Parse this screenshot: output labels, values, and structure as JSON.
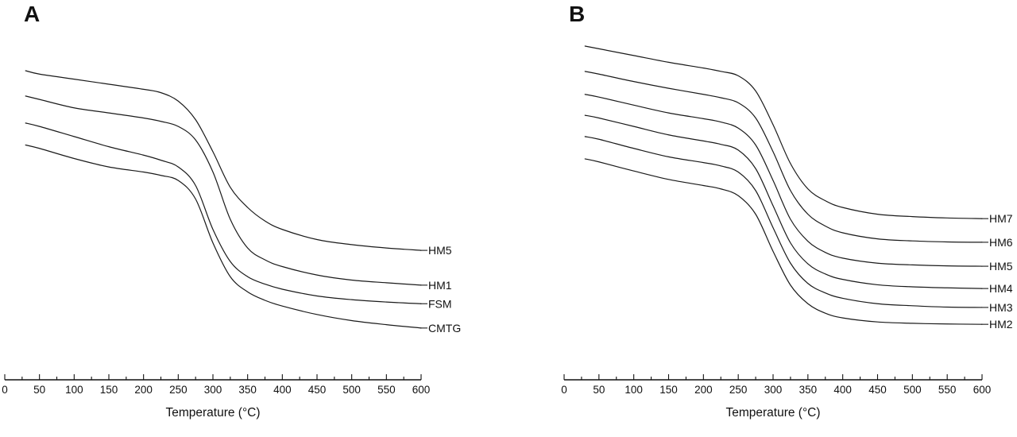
{
  "figure": {
    "panel_a_letter": "A",
    "panel_b_letter": "B"
  },
  "chart_data": [
    {
      "type": "line",
      "panel": "A",
      "title": "",
      "xlabel": "Temperature (°C)",
      "ylabel": "",
      "xlim": [
        0,
        600
      ],
      "ylim": [
        0,
        100
      ],
      "x_ticks": [
        0,
        50,
        100,
        150,
        200,
        250,
        300,
        350,
        400,
        450,
        500,
        550,
        600
      ],
      "x_minor_step": 25,
      "grid": false,
      "legend_position": "right-end-labels",
      "x": [
        30,
        50,
        100,
        150,
        200,
        225,
        250,
        275,
        300,
        325,
        350,
        375,
        400,
        450,
        500,
        550,
        600
      ],
      "series": [
        {
          "name": "HM5",
          "values": [
            92.0,
            91.0,
            89.5,
            88.0,
            86.5,
            85.5,
            83.0,
            77.5,
            68.0,
            57.5,
            51.5,
            47.5,
            45.0,
            42.0,
            40.5,
            39.5,
            38.8
          ]
        },
        {
          "name": "HM1",
          "values": [
            84.5,
            83.5,
            81.0,
            79.5,
            78.0,
            77.0,
            75.5,
            71.5,
            62.0,
            48.0,
            39.5,
            36.0,
            34.0,
            31.5,
            30.0,
            29.2,
            28.5
          ]
        },
        {
          "name": "FSM",
          "values": [
            76.5,
            75.5,
            72.5,
            69.5,
            67.0,
            65.5,
            63.5,
            58.0,
            45.0,
            35.5,
            31.0,
            28.8,
            27.3,
            25.3,
            24.2,
            23.5,
            23.0
          ]
        },
        {
          "name": "CMTG",
          "values": [
            70.0,
            69.0,
            66.0,
            63.5,
            62.0,
            61.0,
            59.5,
            54.0,
            41.0,
            31.0,
            26.5,
            24.0,
            22.3,
            19.8,
            18.0,
            16.8,
            15.8
          ]
        }
      ],
      "y_units_note": "y-axis unlabeled in figure; values are relative weight in arbitrary units 0-100"
    },
    {
      "type": "line",
      "panel": "B",
      "title": "",
      "xlabel": "Temperature (°C)",
      "ylabel": "",
      "xlim": [
        0,
        600
      ],
      "ylim": [
        0,
        100
      ],
      "x_ticks": [
        0,
        50,
        100,
        150,
        200,
        250,
        300,
        350,
        400,
        450,
        500,
        550,
        600
      ],
      "x_minor_step": 25,
      "grid": false,
      "legend_position": "right-end-labels",
      "x": [
        30,
        50,
        100,
        150,
        200,
        225,
        250,
        275,
        300,
        325,
        350,
        375,
        400,
        450,
        500,
        550,
        600
      ],
      "series": [
        {
          "name": "HM7",
          "values": [
            99.3,
            98.5,
            96.5,
            94.5,
            92.8,
            91.8,
            90.5,
            86.0,
            76.0,
            64.5,
            57.0,
            53.5,
            51.5,
            49.5,
            48.8,
            48.4,
            48.2
          ]
        },
        {
          "name": "HM6",
          "values": [
            91.8,
            91.0,
            88.8,
            86.8,
            85.0,
            84.0,
            82.5,
            78.0,
            68.0,
            56.5,
            49.5,
            46.0,
            44.0,
            42.2,
            41.6,
            41.3,
            41.2
          ]
        },
        {
          "name": "HM5",
          "values": [
            85.0,
            84.2,
            81.8,
            79.5,
            77.8,
            76.8,
            75.0,
            70.0,
            59.5,
            48.0,
            41.5,
            38.2,
            36.5,
            35.0,
            34.5,
            34.2,
            34.1
          ]
        },
        {
          "name": "HM4",
          "values": [
            78.8,
            78.0,
            75.5,
            73.0,
            71.2,
            70.2,
            68.5,
            63.0,
            52.0,
            41.0,
            34.8,
            31.8,
            30.2,
            28.6,
            28.0,
            27.7,
            27.5
          ]
        },
        {
          "name": "HM3",
          "values": [
            72.5,
            71.7,
            69.0,
            66.5,
            64.8,
            63.8,
            62.0,
            56.5,
            45.5,
            35.0,
            29.0,
            26.2,
            24.6,
            23.0,
            22.4,
            22.0,
            21.9
          ]
        },
        {
          "name": "HM2",
          "values": [
            65.9,
            65.0,
            62.3,
            59.8,
            58.0,
            57.0,
            55.0,
            49.5,
            38.5,
            28.5,
            23.0,
            20.2,
            18.8,
            17.6,
            17.2,
            17.0,
            16.9
          ]
        }
      ],
      "y_units_note": "y-axis unlabeled in figure; values are relative weight in arbitrary units 0-100"
    }
  ],
  "colors": {
    "curve": "#1a1a1a",
    "axis": "#111111",
    "text": "#111111",
    "background": "#ffffff"
  }
}
